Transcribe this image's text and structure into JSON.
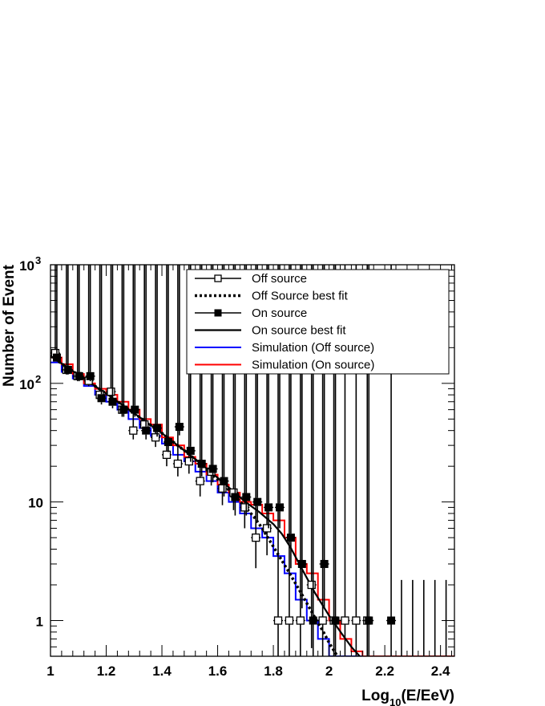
{
  "chart_data": {
    "type": "line",
    "xlabel": "Log10(E/EeV)",
    "xlabel_parts": {
      "base": "Log",
      "sub": "10",
      "rest": "(E/EeV)"
    },
    "ylabel": "Number of Event",
    "xlim": [
      1.0,
      2.45
    ],
    "ylim": [
      0.5,
      1000
    ],
    "y_scale": "log",
    "grid": false,
    "legend_position": "top-right",
    "x_ticks": [
      {
        "v": 1.0,
        "label": "1"
      },
      {
        "v": 1.2,
        "label": "1.2"
      },
      {
        "v": 1.4,
        "label": "1.4"
      },
      {
        "v": 1.6,
        "label": "1.6"
      },
      {
        "v": 1.8,
        "label": "1.8"
      },
      {
        "v": 2.0,
        "label": "2"
      },
      {
        "v": 2.2,
        "label": "2.2"
      },
      {
        "v": 2.4,
        "label": "2.4"
      }
    ],
    "y_ticks": [
      {
        "v": 1,
        "label": "1"
      },
      {
        "v": 10,
        "label": "10"
      },
      {
        "v": 100,
        "label": "10",
        "exp": "2"
      },
      {
        "v": 1000,
        "label": "10",
        "exp": "3"
      }
    ],
    "legend": [
      {
        "label": "Off source",
        "style": "open-marker"
      },
      {
        "label": "Off Source best fit",
        "style": "dotted"
      },
      {
        "label": "On source",
        "style": "filled-marker"
      },
      {
        "label": "On source best fit",
        "style": "solid"
      },
      {
        "label": "Simulation (Off source)",
        "style": "blue"
      },
      {
        "label": "Simulation (On source)",
        "style": "red"
      }
    ],
    "series": [
      {
        "name": "Off source",
        "marker": "open-square",
        "x": [
          1.02,
          1.06,
          1.1,
          1.14,
          1.18,
          1.22,
          1.26,
          1.3,
          1.34,
          1.38,
          1.42,
          1.46,
          1.5,
          1.54,
          1.58,
          1.62,
          1.66,
          1.7,
          1.74,
          1.78,
          1.82,
          1.86,
          1.9,
          1.94,
          1.98,
          2.02,
          2.06,
          2.1,
          2.14
        ],
        "y": [
          180,
          130,
          115,
          105,
          80,
          85,
          60,
          40,
          45,
          35,
          25,
          21,
          22,
          15,
          18,
          13,
          12,
          9,
          5,
          6,
          1,
          1,
          1,
          2,
          1,
          1,
          1,
          1,
          1
        ]
      },
      {
        "name": "On source",
        "marker": "filled-square",
        "x": [
          1.02,
          1.06,
          1.1,
          1.14,
          1.18,
          1.22,
          1.26,
          1.3,
          1.34,
          1.38,
          1.42,
          1.46,
          1.5,
          1.54,
          1.58,
          1.62,
          1.66,
          1.7,
          1.74,
          1.78,
          1.82,
          1.86,
          1.9,
          1.94,
          1.98,
          2.02,
          2.06,
          2.1,
          2.14,
          2.18,
          2.22
        ],
        "y": [
          165,
          130,
          115,
          115,
          75,
          70,
          60,
          60,
          40,
          42,
          32,
          43,
          27,
          21,
          19,
          15,
          11,
          11,
          10,
          9,
          9,
          5,
          3,
          1,
          3,
          1,
          null,
          null,
          1,
          null,
          1
        ]
      },
      {
        "name": "Off Source best fit",
        "line": "dotted",
        "x": [
          1.0,
          1.1,
          1.2,
          1.3,
          1.4,
          1.5,
          1.6,
          1.65,
          1.7,
          1.73,
          1.76,
          1.8,
          1.85,
          1.9,
          1.95,
          1.98,
          2.0,
          2.03
        ],
        "y": [
          170,
          118,
          82,
          56,
          38,
          25,
          15.5,
          12,
          9,
          7.5,
          6,
          4.2,
          2.7,
          1.7,
          1.05,
          0.8,
          0.65,
          0.5
        ]
      },
      {
        "name": "On source best fit",
        "line": "solid",
        "x": [
          1.0,
          1.1,
          1.2,
          1.3,
          1.4,
          1.5,
          1.6,
          1.7,
          1.75,
          1.8,
          1.83,
          1.86,
          1.9,
          1.95,
          2.0,
          2.05,
          2.08,
          2.11
        ],
        "y": [
          170,
          118,
          82,
          56,
          38,
          25,
          16,
          10,
          8.2,
          6.5,
          5.4,
          4.2,
          2.8,
          1.7,
          1.1,
          0.75,
          0.6,
          0.5
        ]
      },
      {
        "name": "Simulation (Off source)",
        "color": "#0000ff",
        "step_edges": [
          1.0,
          1.04,
          1.08,
          1.12,
          1.16,
          1.2,
          1.24,
          1.28,
          1.32,
          1.36,
          1.4,
          1.44,
          1.48,
          1.52,
          1.56,
          1.6,
          1.64,
          1.68,
          1.72,
          1.76,
          1.8,
          1.84,
          1.88,
          1.92,
          1.96,
          2.0,
          2.04,
          2.12
        ],
        "values": [
          150,
          125,
          110,
          95,
          80,
          70,
          60,
          50,
          42,
          36,
          31,
          25,
          22,
          18,
          15,
          12,
          10,
          8,
          6,
          5,
          3.5,
          2.5,
          1.5,
          1,
          0.7,
          0.5,
          0.5
        ]
      },
      {
        "name": "Simulation (On source)",
        "color": "#ff0000",
        "step_edges": [
          1.0,
          1.04,
          1.08,
          1.12,
          1.16,
          1.2,
          1.24,
          1.28,
          1.32,
          1.36,
          1.4,
          1.44,
          1.48,
          1.52,
          1.56,
          1.6,
          1.64,
          1.68,
          1.72,
          1.76,
          1.8,
          1.84,
          1.88,
          1.92,
          1.96,
          2.0,
          2.04,
          2.08,
          2.12,
          2.45
        ],
        "values": [
          165,
          145,
          120,
          100,
          90,
          80,
          70,
          60,
          50,
          45,
          35,
          30,
          24,
          21,
          17,
          14,
          12,
          10,
          9.5,
          8,
          7,
          5,
          3,
          2.5,
          1.5,
          1,
          0.7,
          0.55,
          0.5
        ]
      }
    ],
    "colors": {
      "sim_off": "#0000ff",
      "sim_on": "#ff0000",
      "data": "#000000"
    }
  }
}
